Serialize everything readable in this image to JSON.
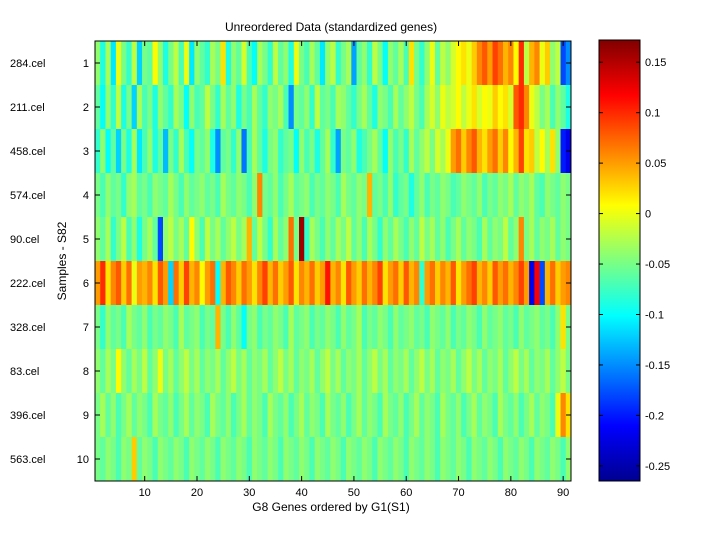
{
  "chart_data": [
    {
      "type": "heatmap",
      "title": "Unreordered Data (standardized genes)",
      "xlabel": "G8 Genes ordered by G1(S1)",
      "ylabel": "Samples - S82",
      "xlim": [
        0.5,
        91.5
      ],
      "xticks": [
        10,
        20,
        30,
        40,
        50,
        60,
        70,
        80,
        90
      ],
      "row_numbers": [
        "1",
        "2",
        "3",
        "4",
        "5",
        "6",
        "7",
        "8",
        "9",
        "10"
      ],
      "row_labels": [
        "284.cel",
        "211.cel",
        "458.cel",
        "574.cel",
        "90.cel",
        "222.cel",
        "328.cel",
        "83.cel",
        "396.cel",
        "563.cel"
      ],
      "n_genes": 91,
      "grid": false,
      "colormap": "jet",
      "values": [
        [
          -0.04,
          -0.09,
          -0.03,
          -0.11,
          0.0,
          -0.05,
          -0.08,
          -0.02,
          -0.12,
          -0.05,
          -0.06,
          0.01,
          -0.04,
          -0.09,
          -0.05,
          -0.02,
          -0.07,
          0.0,
          -0.11,
          -0.04,
          -0.06,
          -0.08,
          -0.03,
          -0.05,
          0.02,
          -0.09,
          -0.04,
          -0.06,
          -0.01,
          -0.07,
          -0.1,
          -0.03,
          -0.05,
          -0.08,
          -0.02,
          -0.06,
          -0.04,
          -0.09,
          0.0,
          -0.05,
          -0.07,
          -0.03,
          -0.06,
          -0.11,
          -0.04,
          -0.02,
          -0.08,
          -0.05,
          -0.03,
          -0.14,
          -0.06,
          -0.04,
          -0.08,
          -0.02,
          -0.05,
          -0.1,
          -0.04,
          -0.06,
          -0.03,
          -0.07,
          0.02,
          -0.05,
          -0.08,
          -0.04,
          0.0,
          -0.06,
          -0.02,
          -0.04,
          -0.01,
          0.01,
          0.02,
          0.0,
          0.03,
          0.06,
          0.08,
          0.05,
          0.09,
          0.07,
          0.04,
          0.06,
          0.01,
          0.1,
          -0.02,
          0.04,
          0.06,
          0.0,
          0.03,
          -0.04,
          -0.02,
          -0.18,
          -0.15
        ],
        [
          -0.06,
          -0.1,
          -0.04,
          -0.08,
          -0.02,
          -0.09,
          -0.05,
          -0.12,
          -0.03,
          -0.07,
          -0.05,
          -0.09,
          -0.04,
          -0.06,
          -0.08,
          -0.03,
          -0.05,
          -0.1,
          -0.04,
          -0.07,
          -0.06,
          -0.02,
          -0.05,
          -0.08,
          -0.03,
          -0.06,
          -0.04,
          -0.09,
          -0.05,
          -0.07,
          -0.03,
          -0.06,
          -0.08,
          -0.04,
          -0.05,
          -0.03,
          -0.07,
          -0.15,
          -0.05,
          -0.06,
          -0.04,
          -0.08,
          -0.02,
          -0.06,
          -0.05,
          -0.07,
          -0.03,
          -0.04,
          -0.06,
          -0.08,
          -0.05,
          -0.03,
          -0.06,
          -0.09,
          -0.04,
          -0.05,
          -0.07,
          -0.03,
          -0.06,
          -0.04,
          -0.02,
          -0.05,
          -0.07,
          -0.03,
          -0.01,
          -0.04,
          0.0,
          -0.02,
          -0.01,
          0.01,
          -0.02,
          0.0,
          0.02,
          -0.01,
          0.01,
          0.0,
          0.03,
          0.01,
          0.02,
          -0.01,
          0.08,
          0.1,
          0.06,
          0.0,
          -0.02,
          -0.05,
          -0.03,
          -0.07,
          -0.04,
          -0.06,
          -0.09
        ],
        [
          -0.08,
          -0.04,
          -0.1,
          -0.06,
          -0.12,
          -0.05,
          -0.09,
          -0.03,
          -0.11,
          -0.07,
          -0.04,
          -0.09,
          -0.06,
          -0.13,
          -0.05,
          -0.08,
          -0.03,
          -0.07,
          -0.1,
          -0.05,
          -0.06,
          -0.04,
          -0.09,
          -0.15,
          -0.06,
          -0.05,
          -0.08,
          -0.04,
          -0.16,
          -0.07,
          -0.03,
          -0.06,
          -0.09,
          -0.05,
          -0.04,
          -0.08,
          -0.06,
          -0.05,
          -0.1,
          -0.04,
          -0.07,
          -0.05,
          -0.09,
          -0.06,
          -0.03,
          -0.08,
          -0.14,
          -0.05,
          -0.06,
          -0.04,
          -0.09,
          -0.07,
          -0.05,
          -0.03,
          -0.06,
          -0.1,
          -0.04,
          -0.07,
          -0.05,
          -0.08,
          -0.03,
          -0.06,
          -0.04,
          -0.02,
          -0.05,
          -0.01,
          -0.03,
          0.0,
          0.05,
          0.07,
          0.03,
          0.06,
          0.08,
          0.04,
          0.02,
          0.05,
          0.07,
          0.03,
          0.06,
          0.01,
          0.04,
          0.09,
          0.02,
          0.03,
          -0.02,
          0.01,
          -0.03,
          0.02,
          -0.04,
          -0.2,
          -0.22
        ],
        [
          -0.05,
          -0.07,
          -0.04,
          -0.06,
          -0.05,
          -0.08,
          -0.04,
          -0.03,
          -0.06,
          -0.05,
          -0.07,
          -0.04,
          -0.05,
          -0.06,
          -0.03,
          -0.05,
          -0.07,
          -0.04,
          -0.06,
          -0.05,
          -0.04,
          -0.06,
          -0.05,
          -0.07,
          -0.03,
          -0.05,
          -0.06,
          -0.04,
          -0.05,
          -0.07,
          -0.04,
          0.06,
          -0.05,
          -0.06,
          -0.04,
          -0.07,
          -0.05,
          -0.03,
          -0.06,
          -0.05,
          -0.04,
          -0.07,
          -0.05,
          -0.06,
          -0.04,
          -0.05,
          -0.07,
          -0.03,
          -0.05,
          -0.06,
          -0.04,
          -0.05,
          0.04,
          -0.06,
          -0.05,
          -0.07,
          -0.04,
          -0.08,
          -0.06,
          -0.05,
          -0.09,
          -0.06,
          -0.04,
          -0.07,
          -0.05,
          -0.06,
          -0.04,
          -0.05,
          -0.07,
          -0.06,
          -0.04,
          -0.05,
          -0.06,
          -0.04,
          -0.07,
          -0.05,
          -0.06,
          -0.04,
          -0.05,
          -0.03,
          -0.06,
          -0.04,
          -0.05,
          -0.03,
          -0.06,
          -0.07,
          -0.04,
          -0.05,
          -0.06,
          -0.04,
          -0.05
        ],
        [
          -0.04,
          -0.06,
          -0.03,
          -0.08,
          -0.05,
          -0.02,
          -0.07,
          -0.04,
          -0.09,
          -0.05,
          -0.03,
          -0.06,
          -0.18,
          -0.04,
          -0.02,
          -0.05,
          -0.03,
          -0.06,
          0.01,
          -0.04,
          -0.07,
          -0.02,
          -0.05,
          -0.03,
          -0.06,
          -0.04,
          -0.02,
          -0.05,
          -0.03,
          0.04,
          -0.06,
          -0.02,
          -0.05,
          -0.08,
          -0.03,
          -0.06,
          -0.04,
          0.07,
          -0.05,
          0.16,
          -0.08,
          -0.03,
          -0.05,
          -0.07,
          -0.04,
          -0.06,
          -0.03,
          -0.05,
          -0.02,
          -0.06,
          -0.04,
          -0.07,
          -0.03,
          -0.05,
          -0.08,
          -0.04,
          -0.06,
          -0.03,
          -0.05,
          -0.07,
          -0.04,
          -0.06,
          -0.02,
          -0.05,
          -0.03,
          -0.06,
          -0.04,
          -0.07,
          -0.05,
          -0.03,
          -0.06,
          -0.04,
          -0.05,
          -0.07,
          -0.03,
          -0.06,
          -0.04,
          -0.05,
          -0.02,
          -0.06,
          -0.04,
          0.06,
          -0.05,
          -0.03,
          -0.06,
          -0.04,
          -0.05,
          -0.03,
          -0.06,
          -0.04,
          -0.05
        ],
        [
          0.05,
          0.1,
          0.02,
          0.06,
          0.08,
          0.03,
          0.07,
          0.0,
          0.05,
          0.04,
          0.06,
          0.02,
          0.08,
          0.05,
          -0.12,
          0.07,
          0.03,
          0.09,
          0.04,
          0.06,
          0.01,
          0.05,
          0.07,
          -0.1,
          0.04,
          0.08,
          0.06,
          0.03,
          0.07,
          0.05,
          0.02,
          0.06,
          0.09,
          0.04,
          0.07,
          0.03,
          0.05,
          0.08,
          0.02,
          0.06,
          0.04,
          0.07,
          0.03,
          0.05,
          0.11,
          0.04,
          0.06,
          0.02,
          0.08,
          0.05,
          0.03,
          0.07,
          0.04,
          0.06,
          0.09,
          0.02,
          0.05,
          0.07,
          0.03,
          0.08,
          0.04,
          0.06,
          -0.08,
          0.05,
          0.07,
          0.03,
          0.06,
          0.04,
          0.08,
          0.02,
          0.05,
          0.07,
          0.09,
          0.04,
          0.06,
          0.03,
          0.08,
          0.05,
          0.07,
          0.04,
          0.06,
          0.09,
          0.05,
          -0.22,
          0.12,
          -0.18,
          0.04,
          0.07,
          0.03,
          0.05,
          0.06
        ],
        [
          -0.05,
          -0.08,
          -0.04,
          -0.06,
          -0.05,
          -0.07,
          -0.03,
          -0.05,
          -0.06,
          -0.04,
          -0.07,
          -0.05,
          -0.06,
          -0.04,
          -0.05,
          -0.07,
          -0.03,
          -0.06,
          -0.05,
          -0.04,
          -0.07,
          -0.05,
          -0.06,
          0.04,
          -0.05,
          -0.07,
          -0.04,
          -0.06,
          -0.1,
          -0.05,
          -0.04,
          -0.07,
          -0.05,
          -0.06,
          -0.04,
          -0.05,
          -0.07,
          -0.03,
          -0.06,
          -0.05,
          -0.04,
          -0.07,
          -0.05,
          -0.06,
          -0.04,
          -0.05,
          -0.07,
          -0.04,
          -0.06,
          -0.05,
          -0.03,
          -0.07,
          -0.05,
          -0.06,
          -0.04,
          -0.05,
          -0.07,
          -0.04,
          -0.06,
          -0.05,
          -0.04,
          -0.06,
          -0.05,
          -0.07,
          -0.04,
          -0.05,
          -0.06,
          -0.04,
          -0.07,
          -0.05,
          -0.06,
          -0.04,
          -0.05,
          -0.07,
          -0.04,
          -0.06,
          -0.05,
          -0.04,
          -0.06,
          -0.05,
          -0.07,
          -0.04,
          -0.06,
          -0.05,
          -0.04,
          -0.06,
          -0.05,
          -0.07,
          -0.04,
          0.02,
          -0.05
        ],
        [
          -0.04,
          -0.06,
          -0.03,
          -0.05,
          0.01,
          -0.04,
          -0.06,
          -0.03,
          -0.05,
          -0.02,
          -0.06,
          -0.04,
          0.0,
          -0.05,
          -0.03,
          -0.06,
          -0.04,
          -0.02,
          -0.05,
          -0.03,
          -0.06,
          -0.04,
          -0.05,
          -0.03,
          -0.06,
          -0.04,
          -0.02,
          -0.05,
          -0.03,
          -0.06,
          -0.04,
          -0.05,
          -0.03,
          -0.06,
          -0.04,
          -0.02,
          -0.05,
          -0.03,
          -0.06,
          -0.04,
          -0.05,
          -0.03,
          -0.06,
          -0.04,
          -0.02,
          -0.05,
          -0.03,
          -0.06,
          -0.04,
          -0.05,
          -0.03,
          -0.06,
          -0.04,
          -0.02,
          -0.05,
          -0.03,
          -0.06,
          -0.04,
          -0.05,
          -0.03,
          -0.06,
          -0.04,
          -0.02,
          -0.05,
          -0.03,
          -0.06,
          -0.04,
          -0.05,
          -0.03,
          -0.06,
          -0.04,
          -0.02,
          -0.05,
          -0.03,
          -0.06,
          -0.04,
          -0.05,
          -0.03,
          -0.06,
          -0.04,
          -0.02,
          -0.05,
          -0.03,
          -0.06,
          -0.04,
          -0.05,
          -0.03,
          -0.06,
          -0.04,
          -0.02,
          -0.05
        ],
        [
          -0.05,
          -0.03,
          -0.06,
          -0.04,
          -0.07,
          -0.05,
          -0.03,
          -0.06,
          -0.04,
          -0.05,
          -0.07,
          -0.03,
          -0.05,
          -0.06,
          -0.04,
          -0.07,
          -0.05,
          -0.03,
          -0.06,
          -0.04,
          -0.05,
          -0.07,
          -0.03,
          -0.05,
          -0.06,
          -0.04,
          -0.07,
          -0.05,
          -0.03,
          -0.06,
          -0.04,
          -0.05,
          -0.07,
          -0.03,
          -0.05,
          -0.06,
          -0.04,
          -0.07,
          -0.05,
          -0.03,
          -0.06,
          -0.04,
          -0.05,
          -0.07,
          -0.03,
          -0.05,
          -0.06,
          -0.04,
          -0.07,
          -0.05,
          -0.03,
          -0.06,
          -0.04,
          -0.05,
          -0.07,
          -0.03,
          -0.05,
          -0.06,
          -0.04,
          -0.07,
          -0.05,
          -0.03,
          -0.06,
          -0.04,
          -0.05,
          -0.07,
          -0.03,
          -0.05,
          -0.06,
          -0.04,
          -0.07,
          -0.05,
          -0.03,
          -0.06,
          -0.04,
          -0.05,
          -0.07,
          -0.03,
          -0.05,
          -0.06,
          -0.04,
          -0.07,
          -0.05,
          -0.03,
          -0.06,
          -0.04,
          -0.05,
          -0.07,
          0.0,
          0.06,
          0.02
        ],
        [
          -0.05,
          -0.06,
          -0.04,
          -0.05,
          -0.07,
          -0.04,
          -0.05,
          0.03,
          -0.06,
          -0.04,
          -0.05,
          -0.07,
          -0.04,
          -0.05,
          -0.06,
          -0.04,
          -0.05,
          -0.07,
          -0.04,
          -0.05,
          -0.06,
          -0.04,
          -0.05,
          -0.07,
          -0.04,
          -0.05,
          -0.06,
          -0.04,
          -0.05,
          -0.07,
          -0.04,
          -0.05,
          -0.06,
          -0.04,
          -0.05,
          -0.07,
          -0.04,
          -0.05,
          -0.06,
          -0.04,
          -0.05,
          -0.07,
          -0.04,
          -0.05,
          -0.06,
          -0.04,
          -0.05,
          -0.07,
          -0.04,
          -0.05,
          -0.06,
          -0.04,
          -0.05,
          -0.07,
          -0.04,
          -0.05,
          -0.06,
          -0.04,
          -0.05,
          -0.07,
          -0.04,
          -0.05,
          -0.06,
          -0.04,
          -0.05,
          -0.07,
          -0.04,
          -0.05,
          -0.06,
          -0.04,
          -0.05,
          -0.07,
          -0.04,
          -0.05,
          -0.06,
          -0.04,
          -0.05,
          -0.07,
          -0.04,
          -0.05,
          -0.06,
          -0.04,
          -0.05,
          -0.07,
          -0.04,
          -0.05,
          -0.06,
          -0.04,
          -0.05,
          -0.07,
          -0.04
        ]
      ]
    },
    {
      "type": "colorbar",
      "colormap": "jet",
      "clim": [
        -0.265,
        0.172
      ],
      "ticks": [
        -0.25,
        -0.2,
        -0.15,
        -0.1,
        -0.05,
        0,
        0.05,
        0.1,
        0.15
      ],
      "tick_labels": [
        "-0.25",
        "-0.2",
        "-0.15",
        "-0.1",
        "-0.05",
        "0",
        "0.05",
        "0.1",
        "0.15"
      ]
    }
  ]
}
